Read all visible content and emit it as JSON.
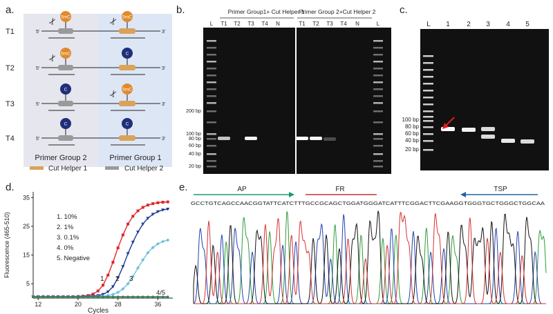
{
  "panels": {
    "a": {
      "letter": "a.",
      "rows": [
        "T1",
        "T2",
        "T3",
        "T4"
      ],
      "rows_marks": [
        {
          "left": "5mC",
          "right": "5mC",
          "left_cut": true,
          "right_cut": true
        },
        {
          "left": "5mC",
          "right": "C",
          "left_cut": true,
          "right_cut": false
        },
        {
          "left": "C",
          "right": "5mC",
          "left_cut": false,
          "right_cut": true
        },
        {
          "left": "C",
          "right": "C",
          "left_cut": false,
          "right_cut": false
        }
      ],
      "end5": "5'",
      "end3": "3'",
      "group_left": "Primer Group 2",
      "group_right": "Primer Group 1",
      "legend1": "Cut Helper 1",
      "legend2": "Cut Helper 2",
      "colors": {
        "orange": "#e08a2c",
        "navy": "#1f2f7a",
        "helper1": "#d9a35a",
        "helper2": "#9a9a9a",
        "bg_left": "#e6e6ee",
        "bg_right": "#dde6f5"
      }
    },
    "b": {
      "letter": "b.",
      "group1_title": "Primer Group1+ Cut Helper 1",
      "group2_title": "Primer Group 2+Cut Helper 2",
      "lanes": [
        "L",
        "T1",
        "T2",
        "T3",
        "T4",
        "N",
        "T1",
        "T2",
        "T3",
        "T4",
        "N",
        "L"
      ],
      "ladder_labels": [
        "200 bp",
        "100 bp",
        "80 bp",
        "60 bp",
        "40 bp",
        "20 bp"
      ]
    },
    "c": {
      "letter": "c.",
      "lanes": [
        "L",
        "1",
        "2",
        "3",
        "4",
        "5"
      ],
      "ladder_labels": [
        "100 bp",
        "80 bp",
        "60 bp",
        "40 bp",
        "20 bp"
      ]
    },
    "d": {
      "letter": "d.",
      "legend": [
        "1. 10%",
        "2. 1%",
        "3. 0.1%",
        "4. 0%",
        "5. Negative"
      ],
      "curve_labels": [
        "1",
        "2",
        "3",
        "4/5"
      ]
    },
    "e": {
      "letter": "e.",
      "sequence": "GCCTGTCAGCCAACGGTATTCATCTTTGCCGCAGCTGGATGGGATCATTTCGGACTTCGAAGGTGGGTGCTGGGCTGGCAA",
      "labels": {
        "ap": "AP",
        "fr": "FR",
        "tsp": "TSP"
      },
      "colors": {
        "ap": "#1c9a6a",
        "fr": "#c9303a",
        "tsp": "#1f63a8"
      }
    }
  },
  "chart_data": {
    "type": "line",
    "title": "",
    "xlabel": "Cycles",
    "ylabel": "Fluorescence (465-510)",
    "xlim": [
      11,
      39
    ],
    "ylim": [
      0,
      37
    ],
    "xticks": [
      12,
      20,
      28,
      36
    ],
    "yticks": [
      5,
      15,
      25,
      35
    ],
    "x": [
      11,
      12,
      13,
      14,
      15,
      16,
      17,
      18,
      19,
      20,
      21,
      22,
      23,
      24,
      25,
      26,
      27,
      28,
      29,
      30,
      31,
      32,
      33,
      34,
      35,
      36,
      37,
      38
    ],
    "series": [
      {
        "name": "1",
        "color": "#e0262a",
        "marker": "square",
        "values": [
          0.5,
          0.5,
          0.5,
          0.5,
          0.5,
          0.5,
          0.5,
          0.5,
          0.5,
          0.6,
          0.7,
          0.9,
          1.4,
          2.5,
          4.5,
          8,
          12.5,
          17.5,
          22,
          25.8,
          28.5,
          30.4,
          31.6,
          32.4,
          32.9,
          33.2,
          33.4,
          33.5
        ]
      },
      {
        "name": "2",
        "color": "#1c3b94",
        "marker": "triangle",
        "values": [
          0.5,
          0.5,
          0.5,
          0.5,
          0.5,
          0.5,
          0.5,
          0.5,
          0.5,
          0.5,
          0.5,
          0.6,
          0.7,
          0.9,
          1.3,
          2.2,
          4,
          7,
          11,
          15.5,
          19.5,
          23,
          25.8,
          27.8,
          29.2,
          30.1,
          30.7,
          31
        ]
      },
      {
        "name": "3",
        "color": "#6cc0dc",
        "marker": "diamond",
        "values": [
          0.5,
          0.5,
          0.5,
          0.5,
          0.5,
          0.5,
          0.5,
          0.5,
          0.5,
          0.5,
          0.5,
          0.5,
          0.5,
          0.6,
          0.7,
          0.9,
          1.3,
          2,
          3.2,
          5,
          7.5,
          10.5,
          13.3,
          15.8,
          17.6,
          18.9,
          19.7,
          20.2
        ]
      },
      {
        "name": "4",
        "color": "#7a3f9a",
        "marker": "circle",
        "values": [
          0.5,
          0.5,
          0.5,
          0.5,
          0.5,
          0.5,
          0.5,
          0.5,
          0.5,
          0.5,
          0.5,
          0.5,
          0.5,
          0.5,
          0.5,
          0.5,
          0.5,
          0.5,
          0.5,
          0.5,
          0.5,
          0.5,
          0.5,
          0.5,
          0.5,
          0.5,
          0.5,
          0.5
        ]
      },
      {
        "name": "5",
        "color": "#2a8a4a",
        "marker": "circle",
        "values": [
          0.4,
          0.4,
          0.4,
          0.4,
          0.4,
          0.4,
          0.4,
          0.4,
          0.4,
          0.4,
          0.4,
          0.4,
          0.4,
          0.4,
          0.4,
          0.4,
          0.4,
          0.4,
          0.4,
          0.4,
          0.4,
          0.4,
          0.4,
          0.4,
          0.4,
          0.4,
          0.4,
          0.4
        ]
      }
    ],
    "grid": false,
    "legend_placement": "upper-left"
  }
}
